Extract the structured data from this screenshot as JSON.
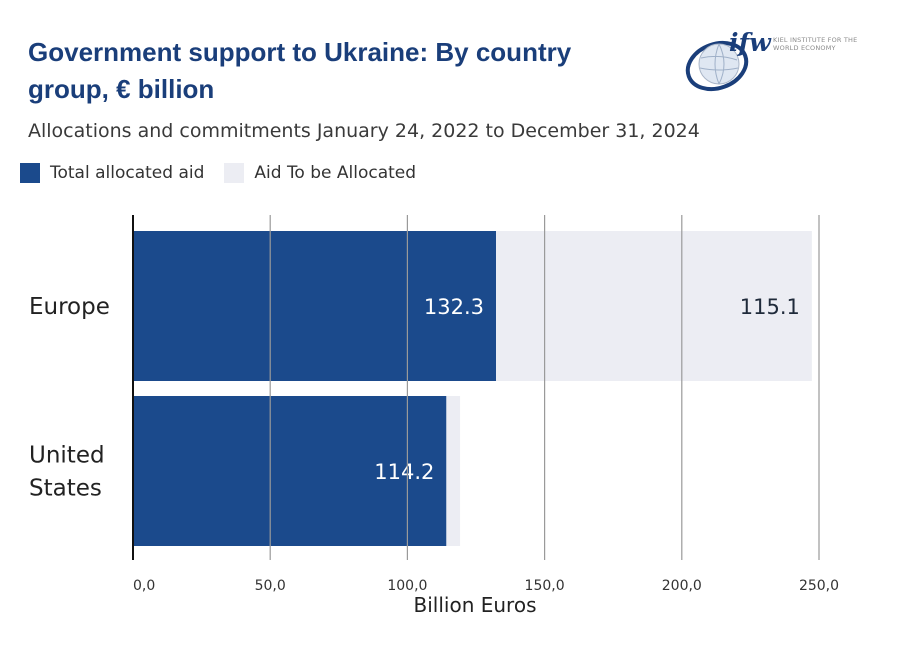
{
  "header": {
    "title": "Government support to Ukraine: By country group, € billion",
    "subtitle": "Allocations and commitments January 24, 2022 to December 31, 2024"
  },
  "logo": {
    "mark": "ifw",
    "text": "KIEL INSTITUTE FOR THE WORLD ECONOMY"
  },
  "legend": [
    {
      "label": "Total allocated aid",
      "color": "#1b4a8c"
    },
    {
      "label": "Aid To be Allocated",
      "color": "#ecedf3"
    }
  ],
  "chart_data": {
    "type": "bar",
    "orientation": "horizontal",
    "stacked": true,
    "categories": [
      "Europe",
      "United States"
    ],
    "category_lines": [
      [
        "Europe"
      ],
      [
        "United",
        "States"
      ]
    ],
    "series": [
      {
        "name": "Total allocated aid",
        "values": [
          132.3,
          114.2
        ],
        "labels": [
          "132.3",
          "114.2"
        ],
        "color": "#1b4a8c"
      },
      {
        "name": "Aid To be Allocated",
        "values": [
          115.1,
          5.0
        ],
        "labels": [
          "115.1",
          ""
        ],
        "color": "#ecedf3"
      }
    ],
    "xlabel": "Billion Euros",
    "xlim": [
      0,
      250
    ],
    "xticks": [
      0,
      50,
      100,
      150,
      200,
      250
    ],
    "xtick_labels": [
      "0,0",
      "50,0",
      "100,0",
      "150,0",
      "200,0",
      "250,0"
    ],
    "grid": true
  }
}
